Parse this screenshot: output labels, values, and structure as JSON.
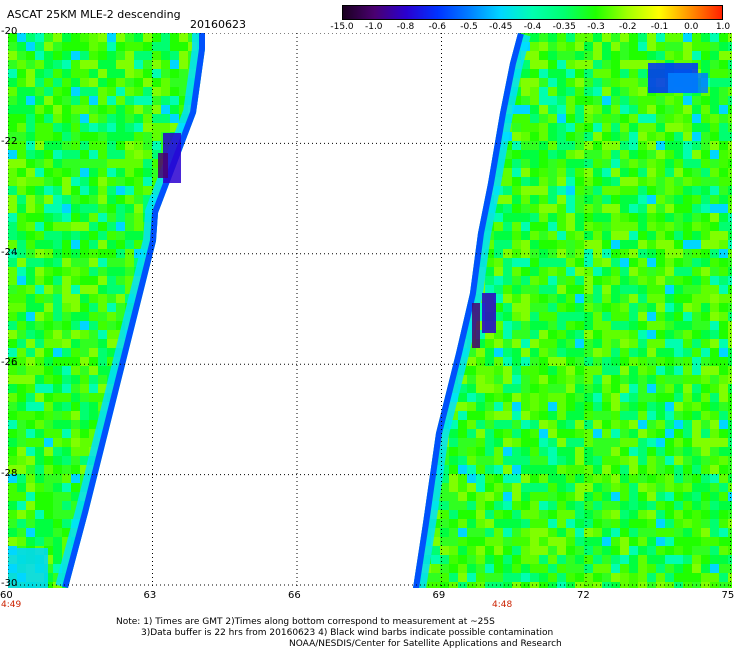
{
  "title": "ASCAT 25KM MLE-2 descending",
  "date": "20160623",
  "colorbar": {
    "labels": [
      "-15.0",
      "-1.0",
      "-0.8",
      "-0.6",
      "-0.5",
      "-0.45",
      "-0.4",
      "-0.35",
      "-0.3",
      "-0.2",
      "-0.1",
      "0.0",
      "1.0"
    ],
    "colors": [
      "#1a0020",
      "#4a0070",
      "#2a00d0",
      "#0033ff",
      "#007fff",
      "#00d7ff",
      "#00ffb0",
      "#00ff70",
      "#20ff00",
      "#a0ff00",
      "#ffff00",
      "#ff9000",
      "#ff2000"
    ]
  },
  "axes": {
    "x_ticks": [
      "60",
      "63",
      "66",
      "69",
      "72",
      "75"
    ],
    "y_ticks": [
      "-20",
      "-22",
      "-24",
      "-26",
      "-28",
      "-30"
    ],
    "lon_range": [
      60,
      75
    ],
    "lat_range": [
      -30,
      -20
    ]
  },
  "swaths": [
    {
      "name": "western-swath",
      "time": "4:49"
    },
    {
      "name": "eastern-swath",
      "time": "4:48"
    }
  ],
  "notes": {
    "line1": "Note: 1) Times are GMT 2)Times along bottom correspond to measurement at ~25S",
    "line2": "3)Data buffer is 22 hrs from 20160623 4) Black wind barbs indicate possible contamination",
    "line3": "NOAA/NESDIS/Center for Satellite Applications and Research"
  }
}
